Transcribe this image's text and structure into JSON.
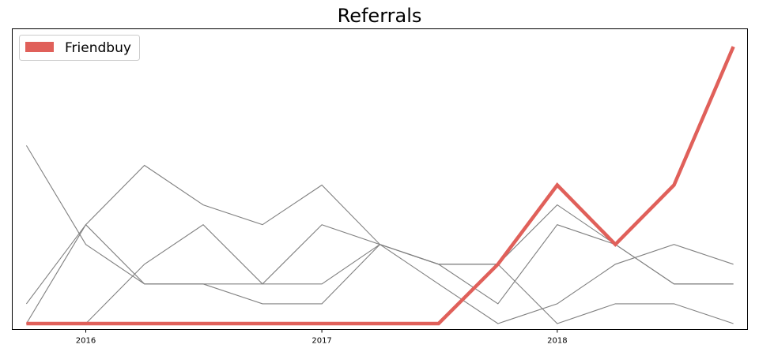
{
  "chart_data": {
    "type": "line",
    "title": "Referrals",
    "xlabel": "",
    "ylabel": "",
    "x": [
      "2015-10-01",
      "2016-01-01",
      "2016-04-01",
      "2016-07-01",
      "2016-10-01",
      "2017-01-01",
      "2017-04-01",
      "2017-07-01",
      "2017-10-01",
      "2018-01-01",
      "2018-04-01",
      "2018-07-01",
      "2018-10-01"
    ],
    "x_tick_labels": [
      "2016",
      "2017",
      "2018"
    ],
    "ylim": [
      -0.15,
      7.45
    ],
    "y_ticks_visible": false,
    "grid": false,
    "legend": {
      "position": "top-left",
      "entries": [
        "Friendbuy"
      ]
    },
    "highlight": {
      "name": "Friendbuy",
      "color": "#e0605a",
      "values": [
        0,
        0,
        0,
        0,
        0,
        0,
        0,
        0,
        1.5,
        3.5,
        2,
        3.5,
        7
      ]
    },
    "background_series": [
      {
        "color": "#808080",
        "values": [
          4.5,
          2,
          1,
          1,
          0.5,
          0.5,
          2,
          1.5,
          0.5,
          2.5,
          2,
          1,
          1
        ]
      },
      {
        "color": "#808080",
        "values": [
          0.5,
          2.5,
          4,
          3,
          2.5,
          3.5,
          2,
          1.5,
          1.5,
          0,
          0.5,
          0.5,
          0
        ]
      },
      {
        "color": "#808080",
        "values": [
          0,
          2.5,
          1,
          1,
          1,
          2.5,
          2,
          1,
          0,
          0.5,
          1.5,
          2,
          1.5
        ]
      },
      {
        "color": "#808080",
        "values": [
          0,
          0,
          1.5,
          2.5,
          1,
          1,
          2,
          1.5,
          1.5,
          3,
          2,
          1,
          1
        ]
      }
    ]
  }
}
